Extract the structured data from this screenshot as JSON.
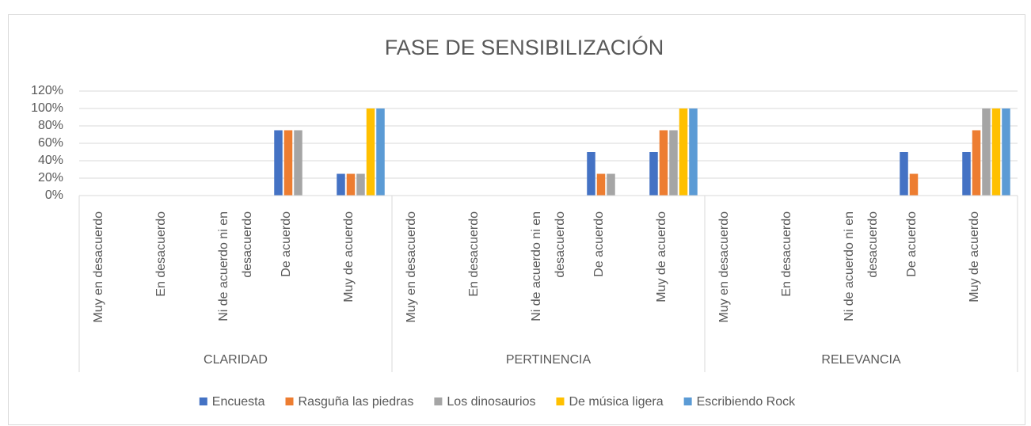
{
  "chart_data": {
    "type": "bar",
    "title": "FASE DE SENSIBILIZACIÓN",
    "groups": [
      "CLARIDAD",
      "PERTINENCIA",
      "RELEVANCIA"
    ],
    "categories": [
      "Muy en desacuerdo",
      "En desacuerdo",
      "Ni de acuerdo ni en desacuerdo",
      "De acuerdo",
      "Muy de acuerdo",
      "Muy en desacuerdo",
      "En desacuerdo",
      "Ni de acuerdo ni en desacuerdo",
      "De acuerdo",
      "Muy de acuerdo",
      "Muy en desacuerdo",
      "En desacuerdo",
      "Ni de acuerdo ni en desacuerdo",
      "De acuerdo",
      "Muy de acuerdo"
    ],
    "series": [
      {
        "name": "Encuesta",
        "color": "#4472c4",
        "values": [
          0,
          0,
          0,
          75,
          25,
          0,
          0,
          0,
          50,
          50,
          0,
          0,
          0,
          50,
          50
        ]
      },
      {
        "name": "Rasguña las piedras",
        "color": "#ed7d31",
        "values": [
          0,
          0,
          0,
          75,
          25,
          0,
          0,
          0,
          25,
          75,
          0,
          0,
          0,
          25,
          75
        ]
      },
      {
        "name": "Los dinosaurios",
        "color": "#a5a5a5",
        "values": [
          0,
          0,
          0,
          75,
          25,
          0,
          0,
          0,
          25,
          75,
          0,
          0,
          0,
          0,
          100
        ]
      },
      {
        "name": "De música ligera",
        "color": "#ffc000",
        "values": [
          0,
          0,
          0,
          0,
          100,
          0,
          0,
          0,
          0,
          100,
          0,
          0,
          0,
          0,
          100
        ]
      },
      {
        "name": "Escribiendo Rock",
        "color": "#5b9bd5",
        "values": [
          0,
          0,
          0,
          0,
          100,
          0,
          0,
          0,
          0,
          100,
          0,
          0,
          0,
          0,
          100
        ]
      }
    ],
    "ylim": [
      0,
      120
    ],
    "yticks": [
      {
        "value": 0,
        "label": "0%"
      },
      {
        "value": 20,
        "label": "20%"
      },
      {
        "value": 40,
        "label": "40%"
      },
      {
        "value": 60,
        "label": "60%"
      },
      {
        "value": 80,
        "label": "80%"
      },
      {
        "value": 100,
        "label": "100%"
      },
      {
        "value": 120,
        "label": "120%"
      }
    ],
    "grid": true,
    "legend": "bottom"
  }
}
